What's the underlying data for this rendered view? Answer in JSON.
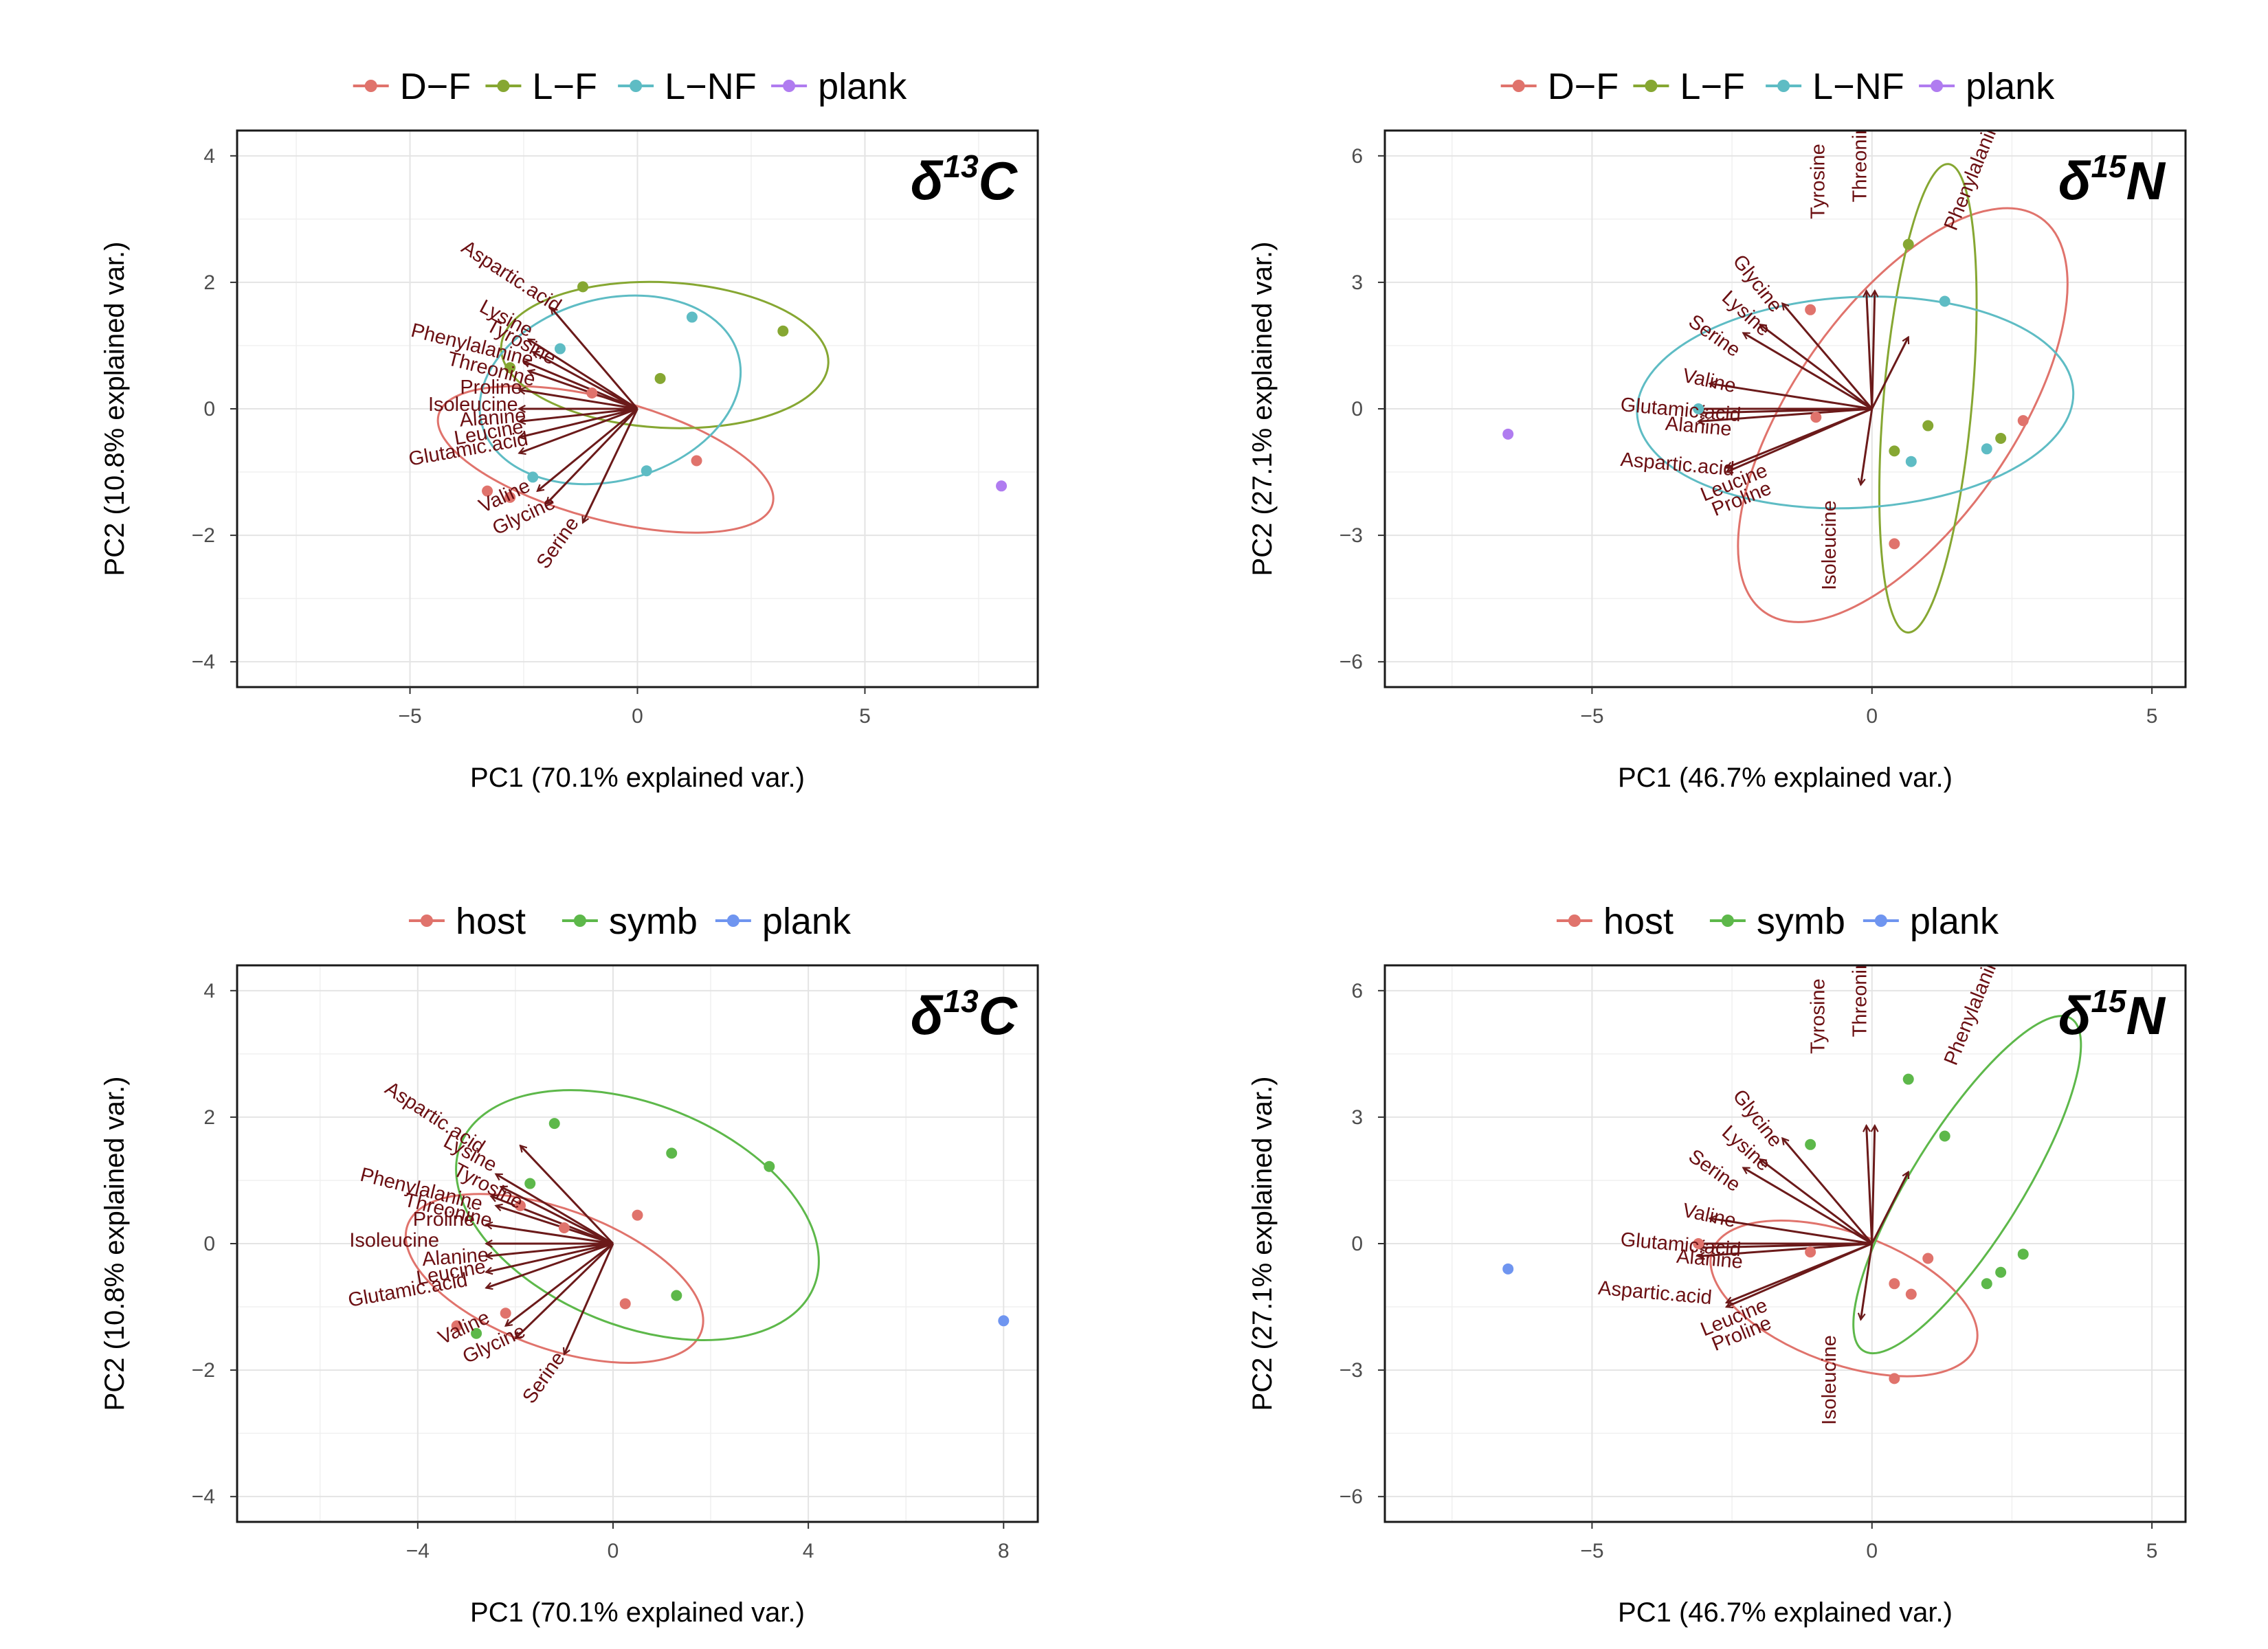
{
  "chart_data": [
    {
      "type": "scatter",
      "tag": "δ",
      "tag_sup": "13",
      "tag_letter": "C",
      "xlabel": "PC1 (70.1% explained var.)",
      "ylabel": "PC2 (10.8% explained var.)",
      "xlim": [
        -8.8,
        8.8
      ],
      "ylim": [
        -4.4,
        4.4
      ],
      "xticks": [
        -5,
        0,
        5
      ],
      "yticks": [
        -4,
        -2,
        0,
        2,
        4
      ],
      "xminor": [
        -7.5,
        -2.5,
        2.5,
        7.5
      ],
      "yminor": [
        -3,
        -1,
        1,
        3
      ],
      "tick_labels_x": [
        "−5",
        "0",
        "5"
      ],
      "tick_labels_y": [
        "−4",
        "−2",
        "0",
        "2",
        "4"
      ],
      "legend": [
        {
          "name": "D−F",
          "color": "#e0736c"
        },
        {
          "name": "L−F",
          "color": "#86a732"
        },
        {
          "name": "L−NF",
          "color": "#5ebcc4"
        },
        {
          "name": "plank",
          "color": "#b07cf0"
        }
      ],
      "points": [
        {
          "g": 0,
          "x": -3.3,
          "y": -1.3
        },
        {
          "g": 0,
          "x": -2.8,
          "y": -1.4
        },
        {
          "g": 0,
          "x": -1.0,
          "y": 0.25
        },
        {
          "g": 0,
          "x": 1.3,
          "y": -0.82
        },
        {
          "g": 1,
          "x": -1.2,
          "y": 1.93
        },
        {
          "g": 1,
          "x": -2.8,
          "y": 0.65
        },
        {
          "g": 1,
          "x": 0.5,
          "y": 0.48
        },
        {
          "g": 1,
          "x": 3.2,
          "y": 1.23
        },
        {
          "g": 2,
          "x": -1.7,
          "y": 0.95
        },
        {
          "g": 2,
          "x": 1.2,
          "y": 1.45
        },
        {
          "g": 2,
          "x": 0.2,
          "y": -0.98
        },
        {
          "g": 2,
          "x": -2.3,
          "y": -1.08
        },
        {
          "g": 3,
          "x": 8.0,
          "y": -1.22
        }
      ],
      "ellipses": [
        {
          "g": 0,
          "cx": -0.7,
          "cy": -0.8,
          "rx": 3.8,
          "ry": 0.95,
          "angle": 15
        },
        {
          "g": 1,
          "cx": 0.6,
          "cy": 0.85,
          "rx": 3.6,
          "ry": 1.15,
          "angle": 3
        },
        {
          "g": 2,
          "cx": -0.6,
          "cy": 0.3,
          "rx": 2.0,
          "ry": 2.1,
          "angle": 75
        }
      ],
      "loadings": [
        {
          "name": "Aspartic.acid",
          "x": -1.9,
          "y": 1.6,
          "lx": -3.9,
          "ly": 2.5,
          "rot": 33
        },
        {
          "name": "Lysine",
          "x": -2.4,
          "y": 1.1,
          "lx": -3.5,
          "ly": 1.55,
          "rot": 28
        },
        {
          "name": "Tyrosine",
          "x": -2.3,
          "y": 0.9,
          "lx": -3.35,
          "ly": 1.25,
          "rot": 28
        },
        {
          "name": "Phenylalanine",
          "x": -2.5,
          "y": 0.75,
          "lx": -5.0,
          "ly": 1.15,
          "rot": 14
        },
        {
          "name": "Threonine",
          "x": -2.4,
          "y": 0.6,
          "lx": -4.2,
          "ly": 0.7,
          "rot": 14
        },
        {
          "name": "Proline",
          "x": -2.6,
          "y": 0.3,
          "lx": -3.9,
          "ly": 0.24,
          "rot": 0
        },
        {
          "name": "Isoleucine",
          "x": -2.6,
          "y": 0.0,
          "lx": -4.6,
          "ly": -0.03,
          "rot": 0
        },
        {
          "name": "Alanine",
          "x": -2.6,
          "y": -0.2,
          "lx": -3.9,
          "ly": -0.28,
          "rot": -4
        },
        {
          "name": "Leucine",
          "x": -2.6,
          "y": -0.45,
          "lx": -4.0,
          "ly": -0.57,
          "rot": -10
        },
        {
          "name": "Glutamic.acid",
          "x": -2.6,
          "y": -0.7,
          "lx": -5.0,
          "ly": -0.9,
          "rot": -10
        },
        {
          "name": "Valine",
          "x": -2.2,
          "y": -1.3,
          "lx": -3.4,
          "ly": -1.65,
          "rot": -25
        },
        {
          "name": "Glycine",
          "x": -2.0,
          "y": -1.5,
          "lx": -3.1,
          "ly": -2.0,
          "rot": -25
        },
        {
          "name": "Serine",
          "x": -1.2,
          "y": -1.8,
          "lx": -2.0,
          "ly": -2.55,
          "rot": -55
        }
      ]
    },
    {
      "type": "scatter",
      "tag": "δ",
      "tag_sup": "15",
      "tag_letter": "N",
      "xlabel": "PC1 (46.7% explained var.)",
      "ylabel": "PC2 (27.1% explained var.)",
      "xlim": [
        -8.7,
        5.6
      ],
      "ylim": [
        -6.6,
        6.6
      ],
      "xticks": [
        -5,
        0,
        5
      ],
      "yticks": [
        -6,
        -3,
        0,
        3,
        6
      ],
      "xminor": [
        -7.5,
        -2.5,
        2.5
      ],
      "yminor": [
        -4.5,
        -1.5,
        1.5,
        4.5
      ],
      "tick_labels_x": [
        "−5",
        "0",
        "5"
      ],
      "tick_labels_y": [
        "−6",
        "−3",
        "0",
        "3",
        "6"
      ],
      "legend": [
        {
          "name": "D−F",
          "color": "#e0736c"
        },
        {
          "name": "L−F",
          "color": "#86a732"
        },
        {
          "name": "L−NF",
          "color": "#5ebcc4"
        },
        {
          "name": "plank",
          "color": "#b07cf0"
        }
      ],
      "points": [
        {
          "g": 0,
          "x": -1.1,
          "y": 2.35
        },
        {
          "g": 0,
          "x": -1.0,
          "y": -0.2
        },
        {
          "g": 0,
          "x": 0.4,
          "y": -3.2
        },
        {
          "g": 0,
          "x": 2.7,
          "y": -0.28
        },
        {
          "g": 1,
          "x": 0.65,
          "y": 3.9
        },
        {
          "g": 1,
          "x": 1.0,
          "y": -0.4
        },
        {
          "g": 1,
          "x": 0.4,
          "y": -1.0
        },
        {
          "g": 1,
          "x": 2.3,
          "y": -0.7
        },
        {
          "g": 2,
          "x": 1.3,
          "y": 2.55
        },
        {
          "g": 2,
          "x": -3.1,
          "y": 0.0
        },
        {
          "g": 2,
          "x": 0.7,
          "y": -1.25
        },
        {
          "g": 2,
          "x": 2.05,
          "y": -0.95
        },
        {
          "g": 3,
          "x": -6.5,
          "y": -0.6
        }
      ],
      "ellipses": [
        {
          "g": 0,
          "cx": 0.55,
          "cy": -0.15,
          "rx": 4.3,
          "ry": 2.6,
          "angle": -55
        },
        {
          "g": 1,
          "cx": 1.0,
          "cy": 0.25,
          "rx": 4.2,
          "ry": 1.05,
          "angle": -85
        },
        {
          "g": 2,
          "cx": -0.3,
          "cy": 0.15,
          "rx": 3.9,
          "ry": 2.5,
          "angle": -3
        }
      ],
      "loadings": [
        {
          "name": "Tyrosine",
          "x": -0.1,
          "y": 2.8,
          "lx": -0.85,
          "ly": 4.5,
          "rot": -90
        },
        {
          "name": "Threonine",
          "x": 0.05,
          "y": 2.8,
          "lx": -0.1,
          "ly": 4.9,
          "rot": -90
        },
        {
          "name": "Phenylalanine",
          "x": 0.65,
          "y": 1.7,
          "lx": 1.5,
          "ly": 4.2,
          "rot": -68
        },
        {
          "name": "Glycine",
          "x": -1.6,
          "y": 2.5,
          "lx": -2.5,
          "ly": 3.5,
          "rot": 52
        },
        {
          "name": "Lysine",
          "x": -2.0,
          "y": 2.0,
          "lx": -2.7,
          "ly": 2.6,
          "rot": 42
        },
        {
          "name": "Serine",
          "x": -2.3,
          "y": 1.8,
          "lx": -3.3,
          "ly": 2.0,
          "rot": 35
        },
        {
          "name": "Valine",
          "x": -2.9,
          "y": 0.6,
          "lx": -3.4,
          "ly": 0.65,
          "rot": 12
        },
        {
          "name": "Glutamic.acid",
          "x": -3.1,
          "y": 0.0,
          "lx": -4.5,
          "ly": -0.05,
          "rot": 5
        },
        {
          "name": "Alanine",
          "x": -3.1,
          "y": -0.3,
          "lx": -3.7,
          "ly": -0.5,
          "rot": 5
        },
        {
          "name": "Aspartic.acid",
          "x": -3.1,
          "y": -0.1,
          "lx": -4.5,
          "ly": -1.35,
          "rot": 5
        },
        {
          "name": "Leucine",
          "x": -2.6,
          "y": -1.4,
          "lx": -3.0,
          "ly": -2.2,
          "rot": -22
        },
        {
          "name": "Proline",
          "x": -2.6,
          "y": -1.5,
          "lx": -2.8,
          "ly": -2.55,
          "rot": -22
        },
        {
          "name": "Isoleucine",
          "x": -0.2,
          "y": -1.8,
          "lx": -0.65,
          "ly": -4.3,
          "rot": -90
        }
      ]
    },
    {
      "type": "scatter",
      "tag": "δ",
      "tag_sup": "13",
      "tag_letter": "C",
      "xlabel": "PC1 (70.1% explained var.)",
      "ylabel": "PC2 (10.8% explained var.)",
      "xlim": [
        -7.7,
        8.7
      ],
      "ylim": [
        -4.4,
        4.4
      ],
      "xticks": [
        -4,
        0,
        4,
        8
      ],
      "yticks": [
        -4,
        -2,
        0,
        2,
        4
      ],
      "xminor": [
        -6,
        -2,
        2,
        6
      ],
      "yminor": [
        -3,
        -1,
        1,
        3
      ],
      "tick_labels_x": [
        "−4",
        "0",
        "4",
        "8"
      ],
      "tick_labels_y": [
        "−4",
        "−2",
        "0",
        "2",
        "4"
      ],
      "legend": [
        {
          "name": "host",
          "color": "#e0736c"
        },
        {
          "name": "symb",
          "color": "#5db84a"
        },
        {
          "name": "plank",
          "color": "#6f95f0"
        }
      ],
      "points": [
        {
          "g": 0,
          "x": -3.2,
          "y": -1.3
        },
        {
          "g": 0,
          "x": -2.2,
          "y": -1.1
        },
        {
          "g": 0,
          "x": -1.9,
          "y": 0.6
        },
        {
          "g": 0,
          "x": -1.0,
          "y": 0.25
        },
        {
          "g": 0,
          "x": 0.5,
          "y": 0.45
        },
        {
          "g": 0,
          "x": 0.25,
          "y": -0.95
        },
        {
          "g": 1,
          "x": -1.2,
          "y": 1.9
        },
        {
          "g": 1,
          "x": -1.7,
          "y": 0.95
        },
        {
          "g": 1,
          "x": 1.2,
          "y": 1.43
        },
        {
          "g": 1,
          "x": 3.2,
          "y": 1.22
        },
        {
          "g": 1,
          "x": 1.3,
          "y": -0.82
        },
        {
          "g": 1,
          "x": -2.8,
          "y": -1.42
        },
        {
          "g": 2,
          "x": 8.0,
          "y": -1.22
        }
      ],
      "ellipses": [
        {
          "g": 0,
          "cx": -1.2,
          "cy": -0.55,
          "rx": 3.2,
          "ry": 1.1,
          "angle": 20
        },
        {
          "g": 1,
          "cx": 0.5,
          "cy": 0.45,
          "rx": 3.9,
          "ry": 1.75,
          "angle": 22
        }
      ],
      "loadings": [
        {
          "name": "Aspartic.acid",
          "x": -1.9,
          "y": 1.55,
          "lx": -4.7,
          "ly": 2.4,
          "rot": 33
        },
        {
          "name": "Lysine",
          "x": -2.4,
          "y": 1.1,
          "lx": -3.5,
          "ly": 1.55,
          "rot": 28
        },
        {
          "name": "Tyrosine",
          "x": -2.3,
          "y": 0.9,
          "lx": -3.3,
          "ly": 1.1,
          "rot": 28
        },
        {
          "name": "Phenylalanine",
          "x": -2.5,
          "y": 0.75,
          "lx": -5.2,
          "ly": 1.0,
          "rot": 14
        },
        {
          "name": "Threonine",
          "x": -2.4,
          "y": 0.6,
          "lx": -4.3,
          "ly": 0.6,
          "rot": 14
        },
        {
          "name": "Proline",
          "x": -2.6,
          "y": 0.3,
          "lx": -4.1,
          "ly": 0.28,
          "rot": 0
        },
        {
          "name": "Isoleucine",
          "x": -2.6,
          "y": 0.0,
          "lx": -5.4,
          "ly": -0.05,
          "rot": 0
        },
        {
          "name": "Alanine",
          "x": -2.6,
          "y": -0.2,
          "lx": -3.9,
          "ly": -0.35,
          "rot": -4
        },
        {
          "name": "Leucine",
          "x": -2.6,
          "y": -0.45,
          "lx": -4.0,
          "ly": -0.65,
          "rot": -10
        },
        {
          "name": "Glutamic.acid",
          "x": -2.6,
          "y": -0.7,
          "lx": -5.4,
          "ly": -1.0,
          "rot": -10
        },
        {
          "name": "Valine",
          "x": -2.2,
          "y": -1.3,
          "lx": -3.5,
          "ly": -1.6,
          "rot": -25
        },
        {
          "name": "Glycine",
          "x": -2.0,
          "y": -1.5,
          "lx": -3.0,
          "ly": -1.9,
          "rot": -25
        },
        {
          "name": "Serine",
          "x": -1.0,
          "y": -1.75,
          "lx": -1.65,
          "ly": -2.55,
          "rot": -55
        }
      ]
    },
    {
      "type": "scatter",
      "tag": "δ",
      "tag_sup": "15",
      "tag_letter": "N",
      "xlabel": "PC1 (46.7% explained var.)",
      "ylabel": "PC2 (27.1% explained var.)",
      "xlim": [
        -8.7,
        5.6
      ],
      "ylim": [
        -6.6,
        6.6
      ],
      "xticks": [
        -5,
        0,
        5
      ],
      "yticks": [
        -6,
        -3,
        0,
        3,
        6
      ],
      "xminor": [
        -7.5,
        -2.5,
        2.5
      ],
      "yminor": [
        -4.5,
        -1.5,
        1.5,
        4.5
      ],
      "tick_labels_x": [
        "−5",
        "0",
        "5"
      ],
      "tick_labels_y": [
        "−6",
        "−3",
        "0",
        "3",
        "6"
      ],
      "legend": [
        {
          "name": "host",
          "color": "#e0736c"
        },
        {
          "name": "symb",
          "color": "#5db84a"
        },
        {
          "name": "plank",
          "color": "#6f95f0"
        }
      ],
      "points": [
        {
          "g": 0,
          "x": -1.1,
          "y": -0.2
        },
        {
          "g": 0,
          "x": 0.4,
          "y": -0.95
        },
        {
          "g": 0,
          "x": 0.7,
          "y": -1.2
        },
        {
          "g": 0,
          "x": 1.0,
          "y": -0.35
        },
        {
          "g": 0,
          "x": 0.4,
          "y": -3.2
        },
        {
          "g": 0,
          "x": -3.1,
          "y": 0.0
        },
        {
          "g": 1,
          "x": -1.1,
          "y": 2.35
        },
        {
          "g": 1,
          "x": 0.65,
          "y": 3.9
        },
        {
          "g": 1,
          "x": 1.3,
          "y": 2.55
        },
        {
          "g": 1,
          "x": 2.05,
          "y": -0.95
        },
        {
          "g": 1,
          "x": 2.3,
          "y": -0.68
        },
        {
          "g": 1,
          "x": 2.7,
          "y": -0.25
        },
        {
          "g": 2,
          "x": -6.5,
          "y": -0.6
        }
      ],
      "ellipses": [
        {
          "g": 0,
          "cx": -0.5,
          "cy": -1.3,
          "rx": 2.5,
          "ry": 1.55,
          "angle": 20
        },
        {
          "g": 1,
          "cx": 1.7,
          "cy": 1.4,
          "rx": 3.5,
          "ry": 1.3,
          "angle": -58
        }
      ],
      "loadings": [
        {
          "name": "Tyrosine",
          "x": -0.1,
          "y": 2.8,
          "lx": -0.85,
          "ly": 4.5,
          "rot": -90
        },
        {
          "name": "Threonine",
          "x": 0.05,
          "y": 2.8,
          "lx": -0.1,
          "ly": 4.9,
          "rot": -90
        },
        {
          "name": "Phenylalanine",
          "x": 0.65,
          "y": 1.7,
          "lx": 1.5,
          "ly": 4.2,
          "rot": -68
        },
        {
          "name": "Glycine",
          "x": -1.6,
          "y": 2.5,
          "lx": -2.5,
          "ly": 3.5,
          "rot": 52
        },
        {
          "name": "Lysine",
          "x": -2.0,
          "y": 2.0,
          "lx": -2.7,
          "ly": 2.6,
          "rot": 42
        },
        {
          "name": "Serine",
          "x": -2.3,
          "y": 1.8,
          "lx": -3.3,
          "ly": 2.0,
          "rot": 35
        },
        {
          "name": "Valine",
          "x": -2.9,
          "y": 0.6,
          "lx": -3.4,
          "ly": 0.65,
          "rot": 12
        },
        {
          "name": "Glutamic.acid",
          "x": -3.1,
          "y": 0.0,
          "lx": -4.5,
          "ly": -0.05,
          "rot": 5
        },
        {
          "name": "Alanine",
          "x": -3.1,
          "y": -0.3,
          "lx": -3.5,
          "ly": -0.45,
          "rot": 5
        },
        {
          "name": "Aspartic.acid",
          "x": -3.1,
          "y": -0.1,
          "lx": -4.9,
          "ly": -1.2,
          "rot": 5
        },
        {
          "name": "Leucine",
          "x": -2.6,
          "y": -1.4,
          "lx": -3.0,
          "ly": -2.2,
          "rot": -22
        },
        {
          "name": "Proline",
          "x": -2.6,
          "y": -1.5,
          "lx": -2.8,
          "ly": -2.55,
          "rot": -22
        },
        {
          "name": "Isoleucine",
          "x": -0.2,
          "y": -1.8,
          "lx": -0.65,
          "ly": -4.3,
          "rot": -90
        }
      ]
    }
  ]
}
